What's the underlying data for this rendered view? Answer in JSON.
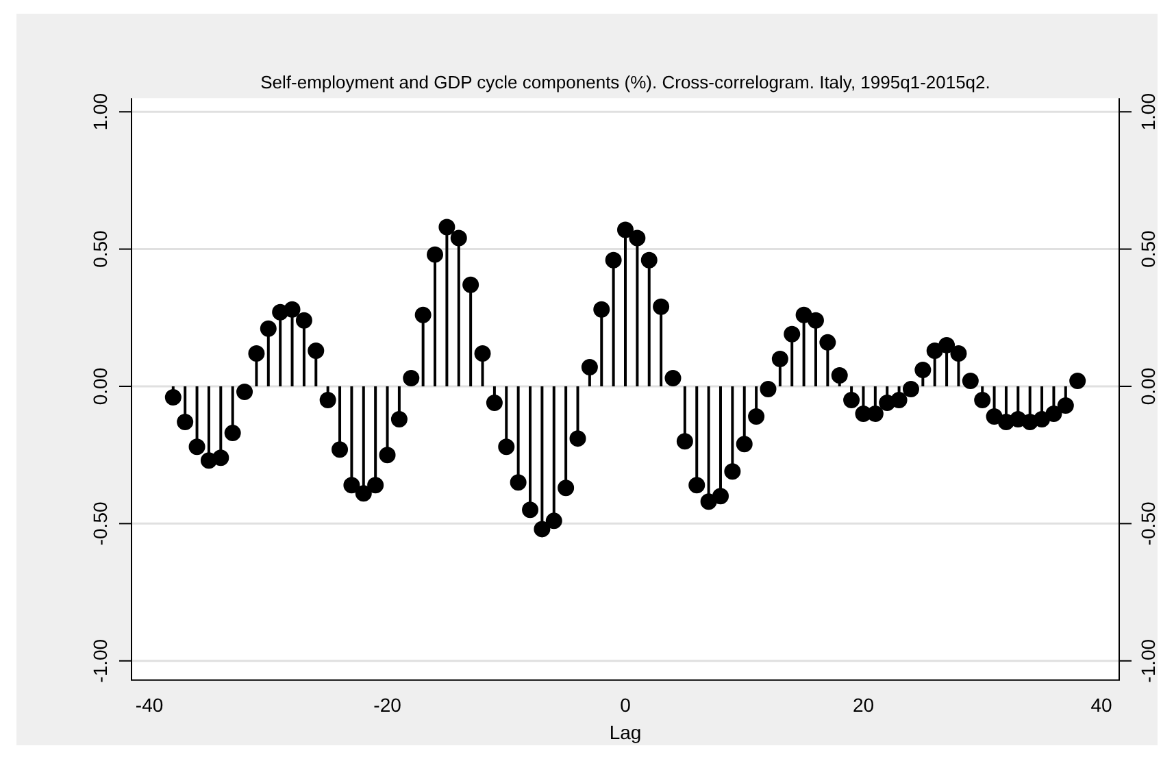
{
  "chart_data": {
    "type": "lollipop",
    "title": "Self-employment and GDP cycle components (%). Cross-correlogram. Italy, 1995q1-2015q2.",
    "xlabel": "Lag",
    "x": [
      -38,
      -37,
      -36,
      -35,
      -34,
      -33,
      -32,
      -31,
      -30,
      -29,
      -28,
      -27,
      -26,
      -25,
      -24,
      -23,
      -22,
      -21,
      -20,
      -19,
      -18,
      -17,
      -16,
      -15,
      -14,
      -13,
      -12,
      -11,
      -10,
      -9,
      -8,
      -7,
      -6,
      -5,
      -4,
      -3,
      -2,
      -1,
      0,
      1,
      2,
      3,
      4,
      5,
      6,
      7,
      8,
      9,
      10,
      11,
      12,
      13,
      14,
      15,
      16,
      17,
      18,
      19,
      20,
      21,
      22,
      23,
      24,
      25,
      26,
      27,
      28,
      29,
      30,
      31,
      32,
      33,
      34,
      35,
      36,
      37,
      38
    ],
    "values": [
      -0.04,
      -0.13,
      -0.22,
      -0.27,
      -0.26,
      -0.17,
      -0.02,
      0.12,
      0.21,
      0.27,
      0.28,
      0.24,
      0.13,
      -0.05,
      -0.23,
      -0.36,
      -0.39,
      -0.36,
      -0.25,
      -0.12,
      0.03,
      0.26,
      0.48,
      0.58,
      0.54,
      0.37,
      0.12,
      -0.06,
      -0.22,
      -0.35,
      -0.45,
      -0.52,
      -0.49,
      -0.37,
      -0.19,
      0.07,
      0.28,
      0.46,
      0.57,
      0.54,
      0.46,
      0.29,
      0.03,
      -0.2,
      -0.36,
      -0.42,
      -0.4,
      -0.31,
      -0.21,
      -0.11,
      -0.01,
      0.1,
      0.19,
      0.26,
      0.24,
      0.16,
      0.04,
      -0.05,
      -0.1,
      -0.1,
      -0.06,
      -0.05,
      -0.01,
      0.06,
      0.13,
      0.15,
      0.12,
      0.02,
      -0.05,
      -0.11,
      -0.13,
      -0.12,
      -0.13,
      -0.12,
      -0.1,
      -0.07,
      0.02
    ],
    "color": "#000000",
    "marker": "circle",
    "xlim": [
      -41.5,
      41.5
    ],
    "xticks": [
      -40,
      -20,
      0,
      20,
      40
    ],
    "ylim": [
      -1.07,
      1.05
    ],
    "yticks": [
      {
        "value": -1,
        "label": "-1.00"
      },
      {
        "value": -0.5,
        "label": "-0.50"
      },
      {
        "value": 0,
        "label": "0.00"
      },
      {
        "value": 0.5,
        "label": "0.50"
      },
      {
        "value": 1,
        "label": "1.00"
      }
    ],
    "y2lim": [
      -1.07,
      1.05
    ],
    "y2ticks": [
      {
        "value": -1,
        "label": "-1.00"
      },
      {
        "value": -0.5,
        "label": "-0.50"
      },
      {
        "value": 0,
        "label": "0.00"
      },
      {
        "value": 0.5,
        "label": "0.50"
      },
      {
        "value": 1,
        "label": "1.00"
      }
    ],
    "grid": "y"
  }
}
